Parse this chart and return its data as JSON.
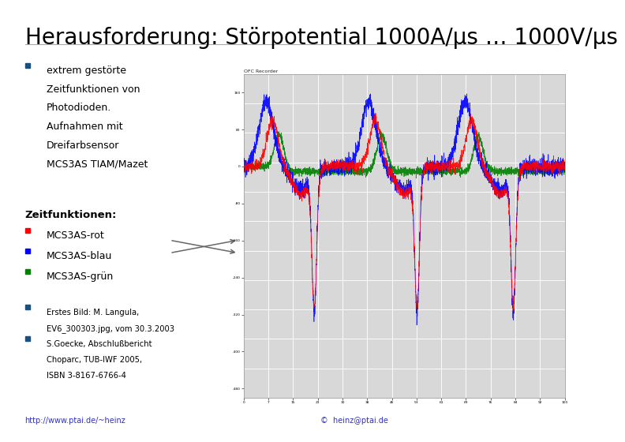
{
  "title": "Herausforderung: Störpotential 1000A/µs … 1000V/µs",
  "title_fontsize": 20,
  "bg_color": "#ffffff",
  "text_color": "#000000",
  "bullet_color": "#1F4E79",
  "bullet1_lines": [
    "extrem gestörte",
    "Zeitfunktionen von",
    "Photodioden.",
    "Aufnahmen mit",
    "Dreifarbsensor",
    "MCS3AS TIAM/Mazet"
  ],
  "section_label": "Zeitfunktionen:",
  "bullet2_lines": [
    "MCS3AS-rot",
    "MCS3AS-blau",
    "MCS3AS-grün"
  ],
  "bullet3_lines": [
    "Erstes Bild: M. Langula,",
    "EV6_300303.jpg, vom 30.3.2003",
    "S.Goecke, Abschlußbericht",
    "Choparc, TUB-IWF 2005,",
    "ISBN 3-8167-6766-4"
  ],
  "link_left": "http://www.ptai.de/~heinz",
  "link_right": "©  heinz@ptai.de",
  "font_family": "DejaVu Sans"
}
